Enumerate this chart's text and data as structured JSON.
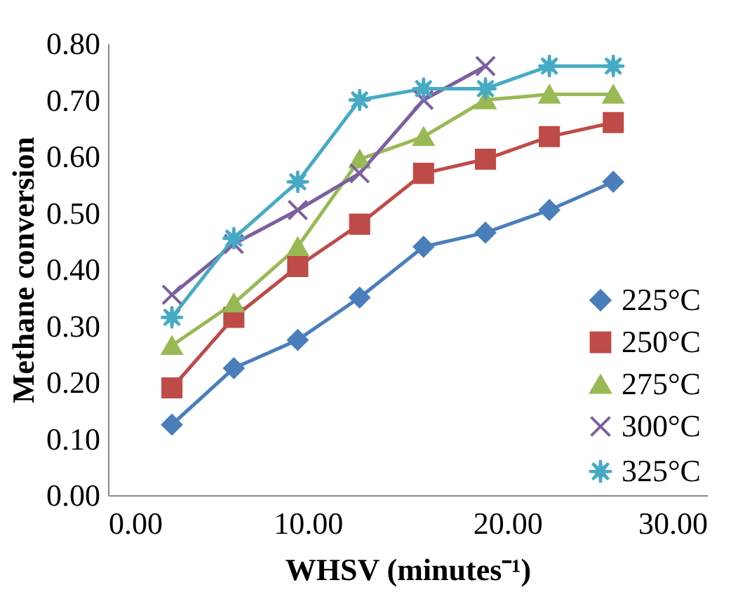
{
  "chart_data": {
    "type": "line",
    "xlabel": "WHSV (minutes⁻¹)",
    "ylabel": "Methane conversion",
    "x": [
      3.2,
      6.3,
      9.5,
      12.6,
      15.8,
      18.9,
      22.1,
      25.3
    ],
    "series": [
      {
        "name": "225°C",
        "color": "#4a7ebb",
        "marker": "diamond",
        "values": [
          0.125,
          0.225,
          0.275,
          0.35,
          0.44,
          0.465,
          0.505,
          0.555
        ]
      },
      {
        "name": "250°C",
        "color": "#be4b48",
        "marker": "square",
        "values": [
          0.19,
          0.315,
          0.405,
          0.48,
          0.57,
          0.595,
          0.635,
          0.66
        ]
      },
      {
        "name": "275°C",
        "color": "#98b954",
        "marker": "triangle",
        "values": [
          0.265,
          0.34,
          0.44,
          0.595,
          0.635,
          0.7,
          0.71,
          0.71
        ]
      },
      {
        "name": "300°C",
        "color": "#7d60a0",
        "marker": "cross",
        "values": [
          0.355,
          0.445,
          0.505,
          0.57,
          0.7,
          0.76,
          null,
          null
        ]
      },
      {
        "name": "325°C",
        "color": "#46aac5",
        "marker": "star",
        "values": [
          0.315,
          0.455,
          0.555,
          0.7,
          0.72,
          0.72,
          0.76,
          0.76
        ]
      }
    ],
    "xlim": [
      0,
      30
    ],
    "xticks": [
      {
        "value": 0,
        "label": "0.00"
      },
      {
        "value": 10,
        "label": "10.00"
      },
      {
        "value": 20,
        "label": "20.00"
      },
      {
        "value": 30,
        "label": "30.00"
      }
    ],
    "ylim": [
      0,
      0.8
    ],
    "yticks": [
      {
        "value": 0,
        "label": "0.00"
      },
      {
        "value": 0.1,
        "label": "0.10"
      },
      {
        "value": 0.2,
        "label": "0.20"
      },
      {
        "value": 0.3,
        "label": "0.30"
      },
      {
        "value": 0.4,
        "label": "0.40"
      },
      {
        "value": 0.5,
        "label": "0.50"
      },
      {
        "value": 0.6,
        "label": "0.60"
      },
      {
        "value": 0.7,
        "label": "0.70"
      },
      {
        "value": 0.8,
        "label": "0.80"
      }
    ],
    "grid": false,
    "legend": "bottom right",
    "line_style": "solid"
  }
}
